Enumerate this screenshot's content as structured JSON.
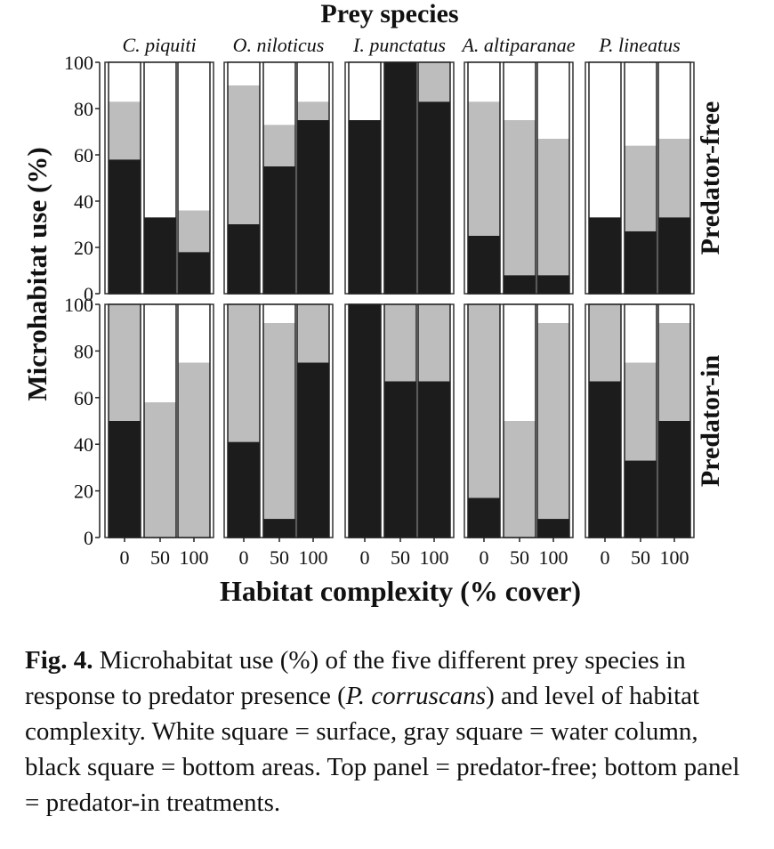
{
  "chart_data": {
    "type": "bar",
    "stacked": true,
    "title": "Prey species",
    "xlabel": "Habitat complexity (% cover)",
    "ylabel": "Microhabitat use (%)",
    "ylim": [
      0,
      100
    ],
    "yticks": [
      0,
      20,
      40,
      60,
      80,
      100
    ],
    "categories": [
      "0",
      "50",
      "100"
    ],
    "species": [
      "C. piquiti",
      "O. niloticus",
      "I. punctatus",
      "A. altiparanae",
      "P. lineatus"
    ],
    "series_colors": {
      "bottom": "#1c1c1c",
      "column": "#bdbdbd",
      "surface": "#ffffff"
    },
    "panels": [
      {
        "label": "Predator-free",
        "groups": [
          {
            "bottom": [
              58,
              33,
              18
            ],
            "column": [
              25,
              0,
              18
            ],
            "surface": [
              17,
              67,
              64
            ]
          },
          {
            "bottom": [
              30,
              55,
              75
            ],
            "column": [
              60,
              18,
              8
            ],
            "surface": [
              10,
              27,
              17
            ]
          },
          {
            "bottom": [
              75,
              100,
              83
            ],
            "column": [
              0,
              0,
              17
            ],
            "surface": [
              25,
              0,
              0
            ]
          },
          {
            "bottom": [
              25,
              8,
              8
            ],
            "column": [
              58,
              67,
              59
            ],
            "surface": [
              17,
              25,
              33
            ]
          },
          {
            "bottom": [
              33,
              27,
              33
            ],
            "column": [
              0,
              37,
              34
            ],
            "surface": [
              67,
              36,
              33
            ]
          }
        ]
      },
      {
        "label": "Predator-in",
        "groups": [
          {
            "bottom": [
              50,
              0,
              0
            ],
            "column": [
              50,
              58,
              75
            ],
            "surface": [
              0,
              42,
              25
            ]
          },
          {
            "bottom": [
              41,
              8,
              75
            ],
            "column": [
              59,
              84,
              25
            ],
            "surface": [
              0,
              8,
              0
            ]
          },
          {
            "bottom": [
              100,
              67,
              67
            ],
            "column": [
              0,
              33,
              33
            ],
            "surface": [
              0,
              0,
              0
            ]
          },
          {
            "bottom": [
              17,
              0,
              8
            ],
            "column": [
              83,
              50,
              84
            ],
            "surface": [
              0,
              50,
              8
            ]
          },
          {
            "bottom": [
              67,
              33,
              50
            ],
            "column": [
              33,
              42,
              42
            ],
            "surface": [
              0,
              25,
              8
            ]
          }
        ]
      }
    ]
  },
  "caption": {
    "label": "Fig. 4.",
    "text_1": " Microhabitat use (%) of the five different prey species in response to predator presence (",
    "italic": "P. corruscans",
    "text_2": ") and level of habitat complexity. White square = surface, gray square = water column, black square = bottom areas. Top panel = predator-free; bottom panel = predator-in treatments."
  }
}
